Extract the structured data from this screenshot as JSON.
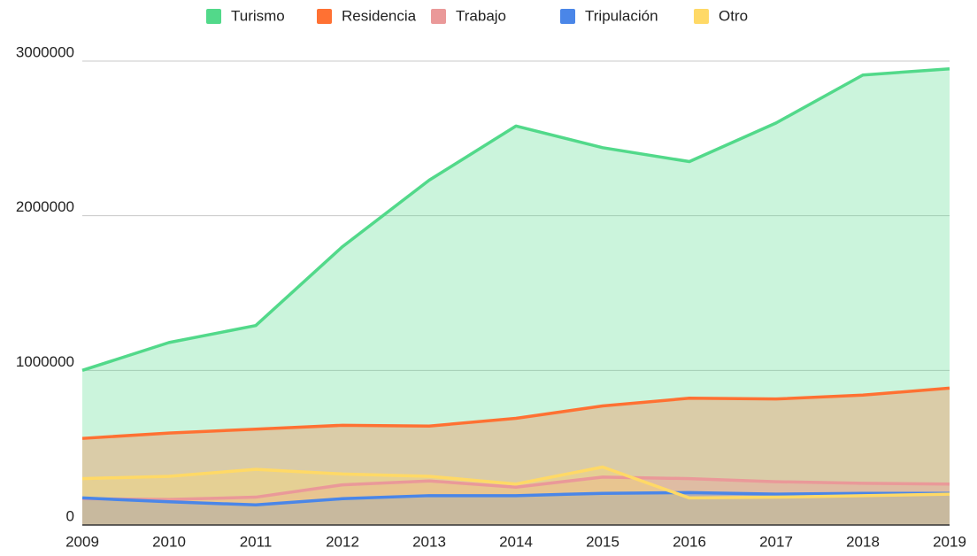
{
  "chart_data": {
    "type": "area",
    "categories": [
      "2009",
      "2010",
      "2011",
      "2012",
      "2013",
      "2014",
      "2015",
      "2016",
      "2017",
      "2018",
      "2019"
    ],
    "series": [
      {
        "name": "Turismo",
        "color": "#52d98a",
        "values": [
          1000000,
          1180000,
          1290000,
          1800000,
          2230000,
          2580000,
          2440000,
          2350000,
          2600000,
          2910000,
          2950000
        ]
      },
      {
        "name": "Residencia",
        "color": "#ff7133",
        "values": [
          560000,
          595000,
          620000,
          645000,
          640000,
          690000,
          770000,
          820000,
          815000,
          840000,
          885000
        ]
      },
      {
        "name": "Trabajo",
        "color": "#ea9999",
        "values": [
          170000,
          165000,
          180000,
          260000,
          285000,
          245000,
          310000,
          300000,
          280000,
          270000,
          265000
        ]
      },
      {
        "name": "Tripulación",
        "color": "#4a86e8",
        "values": [
          175000,
          150000,
          130000,
          170000,
          190000,
          190000,
          205000,
          210000,
          200000,
          205000,
          205000
        ]
      },
      {
        "name": "Otro",
        "color": "#ffd966",
        "values": [
          300000,
          315000,
          360000,
          330000,
          315000,
          265000,
          375000,
          175000,
          180000,
          190000,
          200000
        ]
      }
    ],
    "ylim": [
      0,
      3000000
    ],
    "yticks": [
      0,
      1000000,
      2000000,
      3000000
    ],
    "grid": true,
    "legend": "top"
  }
}
